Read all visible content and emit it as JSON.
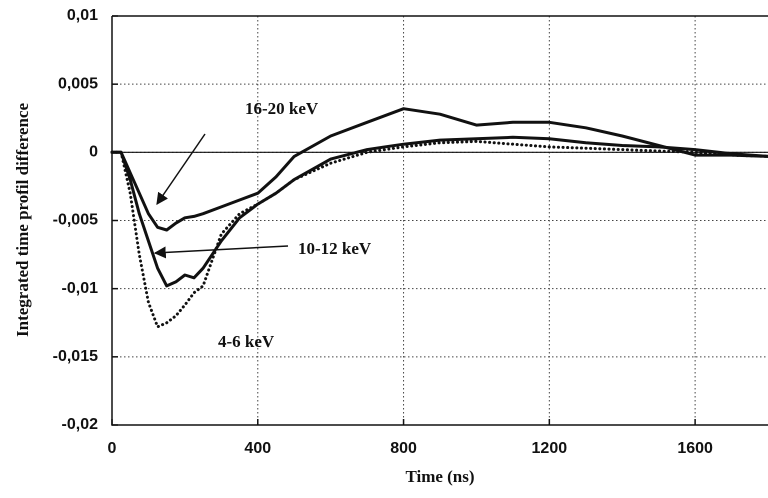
{
  "chart_data": {
    "type": "line",
    "x_label": "Time (ns)",
    "y_label": "Integrated time profil difference",
    "x": [
      0,
      25,
      50,
      75,
      100,
      125,
      150,
      175,
      200,
      225,
      250,
      300,
      350,
      400,
      450,
      500,
      600,
      700,
      800,
      900,
      1000,
      1100,
      1200,
      1300,
      1400,
      1500,
      1600,
      1700,
      1800
    ],
    "series": [
      {
        "name": "16-20 keV",
        "color": "#111111",
        "style": "solid",
        "values": [
          0,
          0,
          -0.0015,
          -0.003,
          -0.0045,
          -0.0055,
          -0.0057,
          -0.0052,
          -0.0048,
          -0.0047,
          -0.0045,
          -0.004,
          -0.0035,
          -0.003,
          -0.0018,
          -0.0003,
          0.0012,
          0.0022,
          0.0032,
          0.0028,
          0.002,
          0.0022,
          0.0022,
          0.0018,
          0.0012,
          0.0005,
          -0.0002,
          -0.0002,
          -0.0003
        ]
      },
      {
        "name": "10-12 keV",
        "color": "#111111",
        "style": "solid",
        "values": [
          0,
          0,
          -0.002,
          -0.0045,
          -0.0065,
          -0.0085,
          -0.0098,
          -0.0095,
          -0.009,
          -0.0092,
          -0.0085,
          -0.0065,
          -0.0048,
          -0.0038,
          -0.003,
          -0.002,
          -0.0005,
          0.0002,
          0.0006,
          0.0009,
          0.001,
          0.0011,
          0.001,
          0.0007,
          0.0005,
          0.0004,
          0.0002,
          -0.0001,
          -0.0003
        ]
      },
      {
        "name": "4-6 keV",
        "color": "#111111",
        "style": "dotted",
        "values": [
          0,
          0,
          -0.003,
          -0.0075,
          -0.011,
          -0.0128,
          -0.0125,
          -0.012,
          -0.0112,
          -0.0103,
          -0.0098,
          -0.006,
          -0.0045,
          -0.0038,
          -0.003,
          -0.002,
          -0.0008,
          0,
          0.0004,
          0.0007,
          0.0008,
          0.0006,
          0.0004,
          0.0003,
          0.0002,
          0.0001,
          0,
          -0.0002,
          -0.0003
        ]
      }
    ],
    "xlim": [
      0,
      1800
    ],
    "xticks": [
      0,
      400,
      800,
      1200,
      1600
    ],
    "ylim": [
      -0.02,
      0.01
    ],
    "yticks": [
      {
        "value": 0.01,
        "label": "0,01"
      },
      {
        "value": 0.005,
        "label": "0,005"
      },
      0,
      {
        "value": -0.005,
        "label": "-0,005"
      },
      {
        "value": -0.01,
        "label": "-0,01"
      },
      {
        "value": -0.015,
        "label": "-0,015"
      },
      {
        "value": -0.02,
        "label": "-0,02"
      }
    ],
    "grid": true
  }
}
